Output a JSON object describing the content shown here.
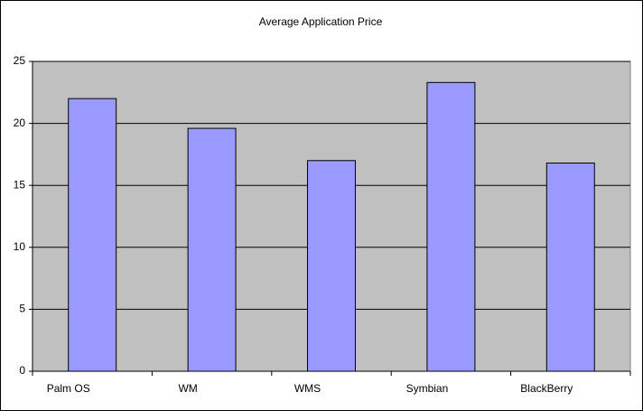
{
  "chart_data": {
    "type": "bar",
    "title": "Average Application Price",
    "categories": [
      "Palm OS",
      "WM",
      "WMS",
      "Symbian",
      "BlackBerry"
    ],
    "values": [
      22.0,
      19.6,
      17.0,
      23.3,
      16.8
    ],
    "color": "#9999ff",
    "plot_background": "#c0c0c0",
    "ylim": [
      0,
      25
    ],
    "yticks": [
      0,
      5,
      10,
      15,
      20,
      25
    ],
    "grid": true
  }
}
